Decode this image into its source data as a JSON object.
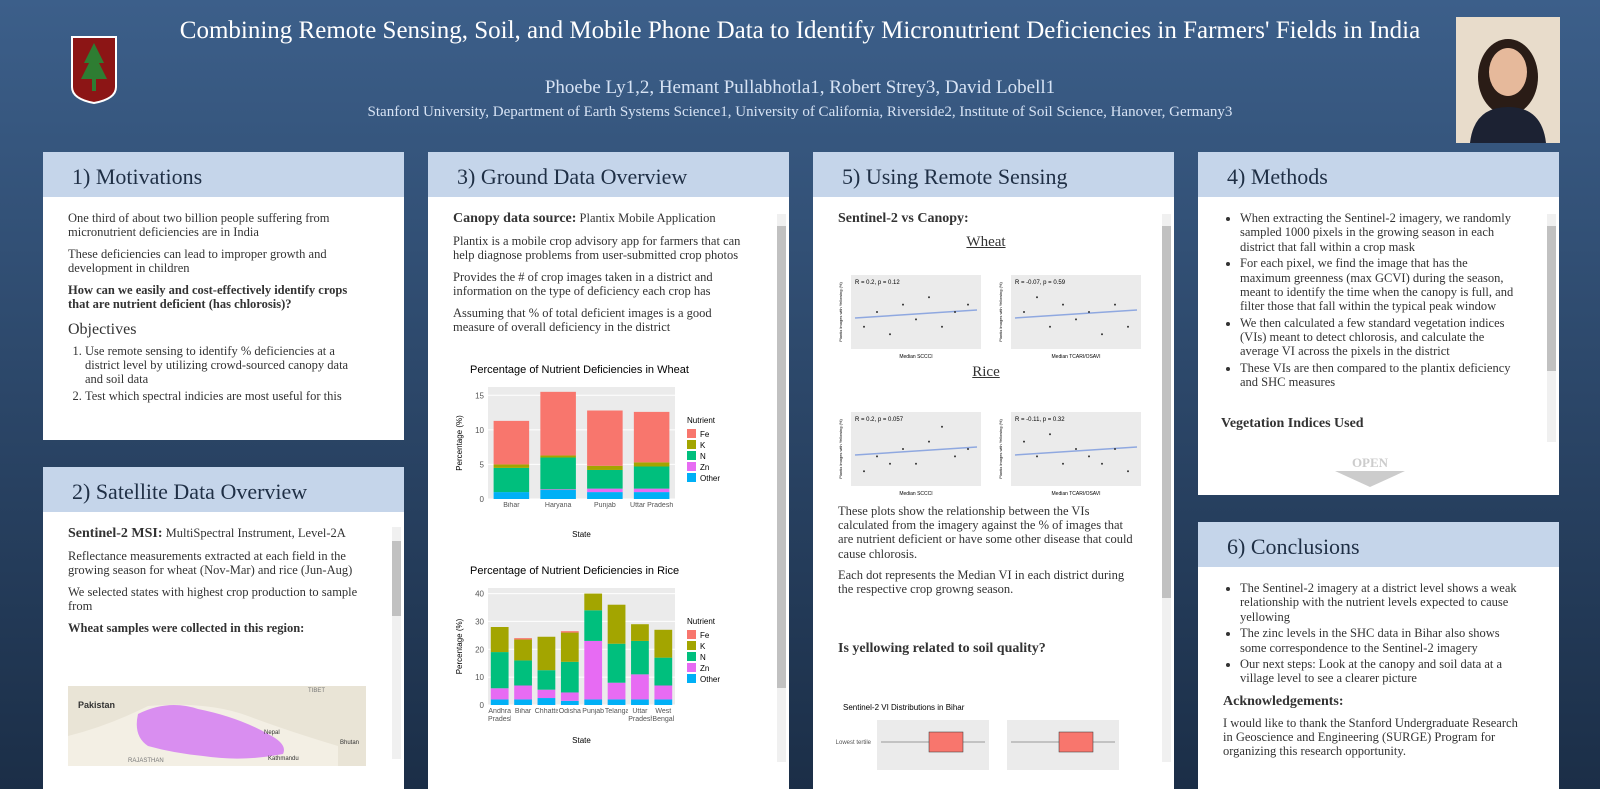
{
  "header": {
    "title": "Combining Remote Sensing, Soil, and Mobile Phone Data to Identify Micronutrient Deficiencies in Farmers' Fields in India",
    "authors": "Phoebe Ly1,2, Hemant Pullabhotla1, Robert Strey3, David Lobell1",
    "affiliations": "Stanford University, Department of Earth Systems Science1, University of California, Riverside2, Institute of Soil Science, Hanover, Germany3"
  },
  "motivations": {
    "title": "1) Motivations",
    "paragraphs": [
      "One third of about two billion people suffering from micronutrient deficiencies are in India",
      "These deficiencies can lead to improper growth and development in children"
    ],
    "question": "How can we easily and cost-effectively identify crops that are nutrient deficient (has chlorosis)?",
    "objectives_heading": "Objectives",
    "objectives": [
      "Use remote sensing to identify % deficiencies at a district level by utilizing crowd-sourced canopy data and soil data",
      "Test which spectral indicies are most useful for this"
    ]
  },
  "satellite": {
    "title": "2) Satellite Data Overview",
    "source_label": "Sentinel-2 MSI:",
    "source_text": "MultiSpectral Instrument, Level-2A",
    "paragraphs": [
      "Reflectance measurements extracted at each field in the growing season for wheat (Nov-Mar) and rice (Jun-Aug)",
      "We selected states with highest crop production to sample from"
    ],
    "region": "Wheat samples were collected in this region:",
    "map_labels": [
      "Pakistan",
      "TIBET",
      "Nepal",
      "Kathmandu",
      "Bhutan",
      "RAJASTHAN"
    ]
  },
  "ground": {
    "title": "3) Ground Data Overview",
    "source_label": "Canopy data source:",
    "source_text": "Plantix Mobile Application",
    "paragraphs": [
      "Plantix is a mobile crop advisory app for farmers that can help diagnose problems from user-submitted crop photos",
      "Provides the # of crop images taken in a district and information on the type of deficiency each crop has",
      "Assuming that % of total deficient images is a good measure of overall deficiency in the district"
    ]
  },
  "remote": {
    "title": "5) Using Remote Sensing",
    "heading": "Sentinel-2 vs Canopy:",
    "wheat_label": "Wheat",
    "rice_label": "Rice",
    "paragraphs": [
      "These plots show the relationship between the VIs calculated from the imagery against the % of images that are nutrient deficient or have some other disease that could cause chlorosis.",
      "Each dot represents the Median VI in each district during the respective crop growng season."
    ],
    "question": "Is yellowing related to soil quality?"
  },
  "methods": {
    "title": "4) Methods",
    "bullets": [
      "When extracting the Sentinel-2 imagery, we randomly sampled 1000 pixels in the growing season in each district that fall within a crop mask",
      "For each pixel, we find the image that has the maximum greenness (max GCVI) during the season, meant to identify the time when the canopy is full, and filter those that fall within the typical peak window",
      "We then calculated a few standard vegetation indices (VIs) meant to detect chlorosis, and calculate the average VI across the pixels in the district",
      "These VIs are then compared to the plantix deficiency and SHC measures"
    ],
    "next_heading": "Vegetation Indices Used",
    "open": "OPEN"
  },
  "conclusions": {
    "title": "6) Conclusions",
    "bullets": [
      "The Sentinel-2 imagery at a district level shows a weak relationship with the nutrient levels expected to cause yellowing",
      "The zinc levels in the SHC data in Bihar also shows some correspondence to the Sentinel-2 imagery",
      "Our next steps: Look at the canopy and soil data at a village level to see a clearer picture"
    ],
    "ack_heading": "Acknowledgements:",
    "ack_text": "I would like to thank the Stanford Undergraduate Research in Geoscience and Engineering (SURGE) Program for organizing this research opportunity."
  },
  "chart_data": [
    {
      "type": "bar",
      "title": "Percentage of Nutrient Deficiencies in Wheat",
      "xlabel": "State",
      "ylabel": "Percentage (%)",
      "legend_title": "Nutrient",
      "categories": [
        "Bihar",
        "Haryana",
        "Punjab",
        "Uttar Pradesh"
      ],
      "ylim": [
        0,
        16.2
      ],
      "yticks": [
        0,
        5,
        10,
        15
      ],
      "series": [
        {
          "name": "Fe",
          "color": "#f8766d",
          "values": [
            6.3,
            9.2,
            8.0,
            7.3
          ]
        },
        {
          "name": "K",
          "color": "#a3a500",
          "values": [
            0.5,
            0.3,
            0.6,
            0.6
          ]
        },
        {
          "name": "N",
          "color": "#00bf7d",
          "values": [
            3.5,
            4.6,
            2.7,
            3.2
          ]
        },
        {
          "name": "Zn",
          "color": "#e76bf3",
          "values": [
            0,
            0.1,
            0.5,
            0.5
          ]
        },
        {
          "name": "Other",
          "color": "#00b0f6",
          "values": [
            1.0,
            1.3,
            1.0,
            1.0
          ]
        }
      ]
    },
    {
      "type": "bar",
      "title": "Percentage of Nutrient Deficiencies in Rice",
      "xlabel": "State",
      "ylabel": "Percentage (%)",
      "legend_title": "Nutrient",
      "categories": [
        "Andhra Pradesh",
        "Bihar",
        "Chhattisgarh",
        "Odisha",
        "Punjab",
        "Telangana",
        "Uttar Pradesh",
        "West Bengal"
      ],
      "ylim": [
        0,
        42
      ],
      "yticks": [
        0,
        10,
        20,
        30,
        40
      ],
      "series": [
        {
          "name": "Fe",
          "color": "#f8766d",
          "values": [
            0,
            0.5,
            0,
            0.5,
            0,
            0,
            0,
            0
          ]
        },
        {
          "name": "K",
          "color": "#a3a500",
          "values": [
            9,
            7.5,
            12,
            10.5,
            6,
            14,
            6,
            10
          ]
        },
        {
          "name": "N",
          "color": "#00bf7d",
          "values": [
            13,
            9,
            7,
            11,
            11,
            14,
            12,
            10
          ]
        },
        {
          "name": "Zn",
          "color": "#e76bf3",
          "values": [
            4,
            5,
            3,
            3,
            21,
            6,
            9,
            5
          ]
        },
        {
          "name": "Other",
          "color": "#00b0f6",
          "values": [
            2,
            2,
            2.5,
            1.5,
            2,
            2,
            2,
            2
          ]
        }
      ]
    },
    {
      "type": "scatter",
      "annotation": "R = 0.2, p = 0.12",
      "xlabel": "Median SCCCI",
      "ylabel": "Plantix Images with Yellowing (%)",
      "xlim": [
        0,
        1
      ],
      "ylim": [
        0,
        1
      ],
      "x": [
        0.1,
        0.2,
        0.3,
        0.4,
        0.5,
        0.6,
        0.7,
        0.8,
        0.9
      ],
      "values": [
        0.3,
        0.5,
        0.2,
        0.6,
        0.4,
        0.7,
        0.3,
        0.5,
        0.6
      ]
    },
    {
      "type": "scatter",
      "annotation": "R = -0.07, p = 0.59",
      "xlabel": "Median TCARI/OSAVI",
      "ylabel": "Plantix Images with Yellowing (%)",
      "xlim": [
        0,
        1
      ],
      "ylim": [
        0,
        1
      ],
      "x": [
        0.1,
        0.2,
        0.3,
        0.4,
        0.5,
        0.6,
        0.7,
        0.8,
        0.9
      ],
      "values": [
        0.5,
        0.7,
        0.3,
        0.6,
        0.4,
        0.5,
        0.2,
        0.6,
        0.3
      ]
    },
    {
      "type": "scatter",
      "annotation": "R = 0.2, p = 0.057",
      "xlabel": "Median SCCCI",
      "ylabel": "Plantix Images with Yellowing (%)",
      "xlim": [
        0,
        1
      ],
      "ylim": [
        0,
        1
      ],
      "x": [
        0.1,
        0.2,
        0.3,
        0.4,
        0.5,
        0.6,
        0.7,
        0.8,
        0.9
      ],
      "values": [
        0.2,
        0.4,
        0.3,
        0.5,
        0.3,
        0.6,
        0.8,
        0.4,
        0.5
      ]
    },
    {
      "type": "scatter",
      "annotation": "R = -0.11, p = 0.32",
      "xlabel": "Median TCARI/OSAVI",
      "ylabel": "Plantix Images with Yellowing (%)",
      "xlim": [
        0,
        1
      ],
      "ylim": [
        0,
        1
      ],
      "x": [
        0.1,
        0.2,
        0.3,
        0.4,
        0.5,
        0.6,
        0.7,
        0.8,
        0.9
      ],
      "values": [
        0.6,
        0.4,
        0.7,
        0.3,
        0.5,
        0.4,
        0.3,
        0.5,
        0.2
      ]
    },
    {
      "type": "box",
      "title": "Sentinel-2 VI Distributions in Bihar",
      "category": "Lowest tertile"
    }
  ]
}
